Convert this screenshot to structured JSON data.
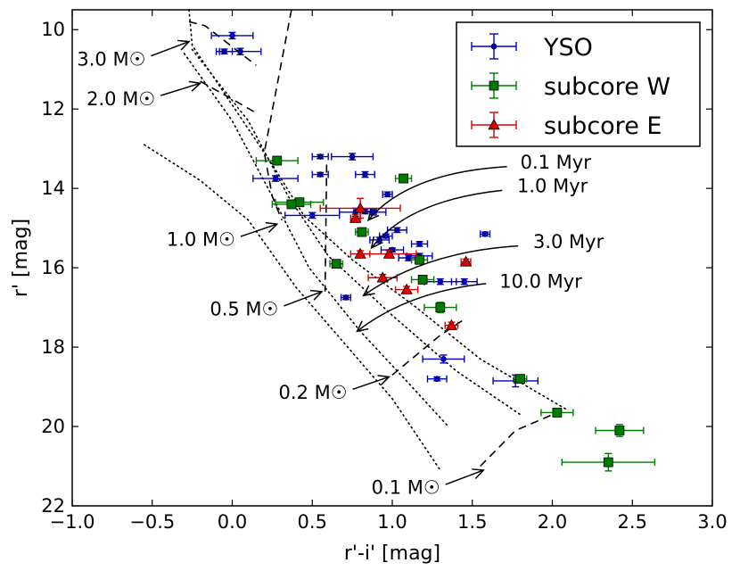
{
  "chart_data": {
    "type": "scatter",
    "xlabel": "r'-i' [mag]",
    "ylabel": "r' [mag]",
    "xlim": [
      -1.0,
      3.0
    ],
    "ylim": [
      22,
      9.5
    ],
    "y_inverted": true,
    "xticks": [
      "−1.0",
      "−0.5",
      "0.0",
      "0.5",
      "1.0",
      "1.5",
      "2.0",
      "2.5",
      "3.0"
    ],
    "xtick_values": [
      -1.0,
      -0.5,
      0.0,
      0.5,
      1.0,
      1.5,
      2.0,
      2.5,
      3.0
    ],
    "yticks": [
      "10",
      "12",
      "14",
      "16",
      "18",
      "20",
      "22"
    ],
    "ytick_values": [
      10,
      12,
      14,
      16,
      18,
      20,
      22
    ],
    "grid": false,
    "legend_position": "top-right",
    "series": [
      {
        "name": "YSO",
        "color": "#0000cc",
        "marker": "circle",
        "points": [
          {
            "x": 0.0,
            "y": 10.15,
            "xerr": 0.13,
            "yerr": 0.08
          },
          {
            "x": -0.05,
            "y": 10.55,
            "xerr": 0.05,
            "yerr": 0.06
          },
          {
            "x": 0.05,
            "y": 10.55,
            "xerr": 0.13,
            "yerr": 0.08
          },
          {
            "x": 0.75,
            "y": 13.2,
            "xerr": 0.13,
            "yerr": 0.08
          },
          {
            "x": 0.55,
            "y": 13.2,
            "xerr": 0.05,
            "yerr": 0.05
          },
          {
            "x": 0.83,
            "y": 13.65,
            "xerr": 0.06,
            "yerr": 0.07
          },
          {
            "x": 0.55,
            "y": 13.65,
            "xerr": 0.05,
            "yerr": 0.05
          },
          {
            "x": 0.27,
            "y": 13.75,
            "xerr": 0.14,
            "yerr": 0.07
          },
          {
            "x": 0.97,
            "y": 14.15,
            "xerr": 0.03,
            "yerr": 0.06
          },
          {
            "x": 0.77,
            "y": 14.6,
            "xerr": 0.1,
            "yerr": 0.1
          },
          {
            "x": 0.88,
            "y": 14.6,
            "xerr": 0.08,
            "yerr": 0.07
          },
          {
            "x": 0.83,
            "y": 14.58,
            "xerr": 0.07,
            "yerr": 0.06
          },
          {
            "x": 0.5,
            "y": 14.68,
            "xerr": 0.17,
            "yerr": 0.07
          },
          {
            "x": 1.03,
            "y": 15.05,
            "xerr": 0.06,
            "yerr": 0.06
          },
          {
            "x": 0.96,
            "y": 15.2,
            "xerr": 0.04,
            "yerr": 0.05
          },
          {
            "x": 0.92,
            "y": 15.3,
            "xerr": 0.06,
            "yerr": 0.07
          },
          {
            "x": 1.58,
            "y": 15.15,
            "xerr": 0.03,
            "yerr": 0.05
          },
          {
            "x": 1.17,
            "y": 15.4,
            "xerr": 0.05,
            "yerr": 0.06
          },
          {
            "x": 1.0,
            "y": 15.55,
            "xerr": 0.07,
            "yerr": 0.05
          },
          {
            "x": 1.1,
            "y": 15.75,
            "xerr": 0.06,
            "yerr": 0.07
          },
          {
            "x": 1.17,
            "y": 15.7,
            "xerr": 0.08,
            "yerr": 0.06
          },
          {
            "x": 1.3,
            "y": 16.35,
            "xerr": 0.1,
            "yerr": 0.07
          },
          {
            "x": 1.45,
            "y": 16.35,
            "xerr": 0.08,
            "yerr": 0.07
          },
          {
            "x": 0.71,
            "y": 16.75,
            "xerr": 0.03,
            "yerr": 0.05
          },
          {
            "x": 1.32,
            "y": 18.3,
            "xerr": 0.13,
            "yerr": 0.1
          },
          {
            "x": 1.28,
            "y": 18.8,
            "xerr": 0.06,
            "yerr": 0.05
          },
          {
            "x": 1.77,
            "y": 18.85,
            "xerr": 0.14,
            "yerr": 0.15
          }
        ]
      },
      {
        "name": "subcore W",
        "color": "#007a00",
        "marker": "square",
        "points": [
          {
            "x": 0.28,
            "y": 13.3,
            "xerr": 0.13,
            "yerr": 0.1
          },
          {
            "x": 1.07,
            "y": 13.75,
            "xerr": 0.05,
            "yerr": 0.07
          },
          {
            "x": 0.42,
            "y": 14.35,
            "xerr": 0.15,
            "yerr": 0.08
          },
          {
            "x": 0.37,
            "y": 14.4,
            "xerr": 0.12,
            "yerr": 0.08
          },
          {
            "x": 0.81,
            "y": 15.1,
            "xerr": 0.04,
            "yerr": 0.08
          },
          {
            "x": 1.17,
            "y": 15.8,
            "xerr": 0.05,
            "yerr": 0.08
          },
          {
            "x": 0.65,
            "y": 15.9,
            "xerr": 0.04,
            "yerr": 0.08
          },
          {
            "x": 1.19,
            "y": 16.3,
            "xerr": 0.07,
            "yerr": 0.08
          },
          {
            "x": 1.3,
            "y": 17.0,
            "xerr": 0.1,
            "yerr": 0.13
          },
          {
            "x": 1.8,
            "y": 18.8,
            "xerr": 0.04,
            "yerr": 0.1
          },
          {
            "x": 2.03,
            "y": 19.65,
            "xerr": 0.1,
            "yerr": 0.08
          },
          {
            "x": 2.42,
            "y": 20.1,
            "xerr": 0.15,
            "yerr": 0.15
          },
          {
            "x": 2.35,
            "y": 20.9,
            "xerr": 0.29,
            "yerr": 0.22
          }
        ]
      },
      {
        "name": "subcore E",
        "color": "#dd0000",
        "marker": "triangle",
        "points": [
          {
            "x": 0.8,
            "y": 14.5,
            "xerr": 0.25,
            "yerr": 0.25
          },
          {
            "x": 0.77,
            "y": 14.75,
            "xerr": 0.03,
            "yerr": 0.1
          },
          {
            "x": 0.8,
            "y": 15.65,
            "xerr": 0.06,
            "yerr": 0.08
          },
          {
            "x": 0.98,
            "y": 15.65,
            "xerr": 0.17,
            "yerr": 0.08
          },
          {
            "x": 0.94,
            "y": 16.25,
            "xerr": 0.09,
            "yerr": 0.08
          },
          {
            "x": 1.46,
            "y": 15.85,
            "xerr": 0.03,
            "yerr": 0.07
          },
          {
            "x": 1.09,
            "y": 16.55,
            "xerr": 0.07,
            "yerr": 0.08
          },
          {
            "x": 1.37,
            "y": 17.45,
            "xerr": 0.04,
            "yerr": 0.08
          }
        ]
      }
    ],
    "isochrones": [
      {
        "label": "0.1 Myr",
        "points": [
          [
            -0.27,
            9.5
          ],
          [
            -0.25,
            10.4
          ],
          [
            0.05,
            12.2
          ],
          [
            0.25,
            13.4
          ],
          [
            0.45,
            14.7
          ],
          [
            0.75,
            15.8
          ],
          [
            1.15,
            17.0
          ],
          [
            1.55,
            18.3
          ],
          [
            2.1,
            19.6
          ]
        ]
      },
      {
        "label": "1.0 Myr",
        "points": [
          [
            -0.25,
            10.5
          ],
          [
            0.1,
            12.3
          ],
          [
            0.35,
            14.2
          ],
          [
            0.6,
            15.7
          ],
          [
            1.0,
            17.2
          ],
          [
            1.4,
            18.6
          ],
          [
            1.8,
            19.7
          ]
        ]
      },
      {
        "label": "3.0 Myr",
        "points": [
          [
            -0.3,
            10.6
          ],
          [
            0.0,
            12.3
          ],
          [
            0.25,
            14.2
          ],
          [
            0.48,
            16.0
          ],
          [
            0.8,
            17.6
          ],
          [
            1.1,
            18.9
          ],
          [
            1.35,
            20.0
          ]
        ]
      },
      {
        "label": "10.0 Myr",
        "points": [
          [
            -0.55,
            12.9
          ],
          [
            -0.2,
            13.8
          ],
          [
            0.1,
            14.8
          ],
          [
            0.4,
            16.5
          ],
          [
            0.7,
            17.9
          ],
          [
            1.0,
            19.3
          ],
          [
            1.3,
            21.1
          ]
        ]
      }
    ],
    "mass_tracks": [
      {
        "label": "3.0 M☉",
        "points": [
          [
            -0.27,
            9.8
          ],
          [
            -0.17,
            9.9
          ],
          [
            0.15,
            10.9
          ]
        ]
      },
      {
        "label": "2.0 M☉",
        "points": [
          [
            -0.2,
            11.3
          ],
          [
            0.02,
            11.8
          ],
          [
            0.15,
            12.1
          ]
        ]
      },
      {
        "label": "1.0 M☉",
        "points": [
          [
            0.37,
            9.5
          ],
          [
            0.2,
            13.1
          ],
          [
            0.25,
            14.2
          ],
          [
            0.31,
            14.8
          ]
        ]
      },
      {
        "label": "0.5 M☉",
        "points": [
          [
            0.59,
            13.4
          ],
          [
            0.58,
            16.6
          ]
        ]
      },
      {
        "label": "0.2 M☉",
        "points": [
          [
            1.0,
            18.7
          ],
          [
            1.3,
            17.7
          ],
          [
            1.45,
            17.3
          ]
        ]
      },
      {
        "label": "0.1 M☉",
        "points": [
          [
            1.55,
            21.0
          ],
          [
            1.77,
            20.1
          ],
          [
            2.06,
            19.6
          ]
        ]
      }
    ],
    "annotations": [
      {
        "text": "3.0 M☉",
        "pos": [
          -0.97,
          10.9
        ],
        "arrow_to": [
          -0.27,
          10.3
        ]
      },
      {
        "text": "2.0 M☉",
        "pos": [
          -0.91,
          11.9
        ],
        "arrow_to": [
          -0.2,
          11.35
        ]
      },
      {
        "text": "1.0 M☉",
        "pos": [
          -0.41,
          15.45
        ],
        "arrow_to": [
          0.28,
          14.9
        ]
      },
      {
        "text": "0.5 M☉",
        "pos": [
          -0.14,
          17.2
        ],
        "arrow_to": [
          0.56,
          16.6
        ]
      },
      {
        "text": "0.2 M☉",
        "pos": [
          0.29,
          19.3
        ],
        "arrow_to": [
          0.98,
          18.75
        ]
      },
      {
        "text": "0.1 M☉",
        "pos": [
          0.87,
          21.7
        ],
        "arrow_to": [
          1.57,
          21.1
        ]
      },
      {
        "text": "0.1 Myr",
        "pos": [
          1.8,
          13.5
        ],
        "arrow_to": [
          0.85,
          14.8
        ],
        "curve": [
          1.75,
          13.45,
          1.1,
          13.6
        ]
      },
      {
        "text": "1.0 Myr",
        "pos": [
          1.78,
          14.1
        ],
        "arrow_to": [
          0.87,
          15.5
        ],
        "curve": [
          1.72,
          14.05,
          1.1,
          14.3
        ]
      },
      {
        "text": "3.0 Myr",
        "pos": [
          1.88,
          15.5
        ],
        "arrow_to": [
          0.82,
          16.7
        ],
        "curve": [
          1.82,
          15.45,
          1.2,
          15.6
        ]
      },
      {
        "text": "10.0 Myr",
        "pos": [
          1.67,
          16.5
        ],
        "arrow_to": [
          0.78,
          17.6
        ],
        "curve": [
          1.62,
          16.4,
          1.1,
          16.6
        ]
      }
    ],
    "legend": [
      "YSO",
      "subcore W",
      "subcore E"
    ]
  }
}
